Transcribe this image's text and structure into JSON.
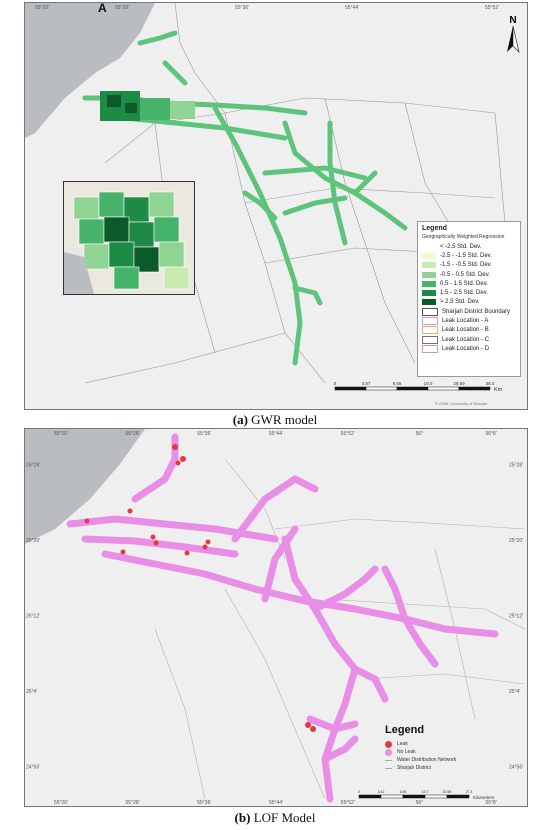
{
  "panel_a": {
    "caption_letter": "(a)",
    "caption_text": "GWR model",
    "north_label": "N",
    "inset_label": "A",
    "legend": {
      "title": "Legend",
      "subtitle": "Geographically Weighted Regression",
      "items": [
        {
          "label": "< -2.5 Std. Dev.",
          "color": "#ffffff"
        },
        {
          "label": "-2.5 - -1.5 Std. Dev.",
          "color": "#f2f9cf"
        },
        {
          "label": "-1.5 - -0.5 Std. Dev.",
          "color": "#c9ebb0"
        },
        {
          "label": "-0.5 - 0.5 Std. Dev.",
          "color": "#8fd493"
        },
        {
          "label": "0.5 - 1.5 Std. Dev.",
          "color": "#46b36a"
        },
        {
          "label": "1.5 - 2.5 Std. Dev.",
          "color": "#1d8a45"
        },
        {
          "label": "> 2.5 Std. Dev.",
          "color": "#0b5a2a"
        },
        {
          "label": "Sharjah District Boundary",
          "color": "#ffffff"
        },
        {
          "label": "Leak Location - A",
          "color": "#e08ee8"
        },
        {
          "label": "Leak Location - B",
          "color": "#e6b26a"
        },
        {
          "label": "Leak Location - C",
          "color": "#8a6a6a"
        },
        {
          "label": "Leak Location - D",
          "color": "#b0a0d0"
        }
      ]
    },
    "scale": {
      "labels": [
        "0",
        "4.87",
        "9.58",
        "19.0",
        "28.69",
        "38.4"
      ],
      "unit": "Km"
    },
    "credit": "© OSM, University of Sharjah"
  },
  "panel_b": {
    "caption_letter": "(b)",
    "caption_text": "LOF Model",
    "top_ticks": [
      "55°20'",
      "55°28'",
      "55°36'",
      "55°44'",
      "55°52'",
      "56°",
      "56°8'"
    ],
    "bottom_ticks": [
      "55°20'",
      "55°28'",
      "55°36'",
      "55°44'",
      "55°52'",
      "56°",
      "56°8'"
    ],
    "left_ticks": [
      "25°28'",
      "25°20'",
      "25°12'",
      "25°4'",
      "24°56'"
    ],
    "right_ticks": [
      "25°28'",
      "25°20'",
      "25°12'",
      "25°4'",
      "24°56'"
    ],
    "legend": {
      "title": "Legend",
      "items": [
        {
          "label": "Leak",
          "kind": "dot",
          "color": "#e5393f"
        },
        {
          "label": "No Leak",
          "kind": "dot",
          "color": "#e88ee6"
        },
        {
          "label": "Water Distribution Network",
          "kind": "line",
          "color": "#aaaaaa"
        },
        {
          "label": "Sharjah District",
          "kind": "line",
          "color": "#aaaaaa"
        }
      ]
    },
    "scale": {
      "labels": [
        "0",
        "3.42",
        "6.85",
        "13.7",
        "20.55",
        "27.4"
      ],
      "unit": "Kilometers"
    }
  },
  "colors": {
    "gwr_green": "#5ec47c",
    "lof_pink": "#e88ee6",
    "lof_red": "#e5393f",
    "sea": "#b9bcc0",
    "land": "#efefef"
  }
}
